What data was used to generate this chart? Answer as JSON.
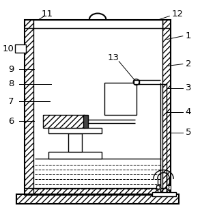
{
  "fig_width": 3.15,
  "fig_height": 3.1,
  "dpi": 100,
  "line_color": "#000000",
  "bg_color": "#ffffff",
  "label_fontsize": 9.5
}
